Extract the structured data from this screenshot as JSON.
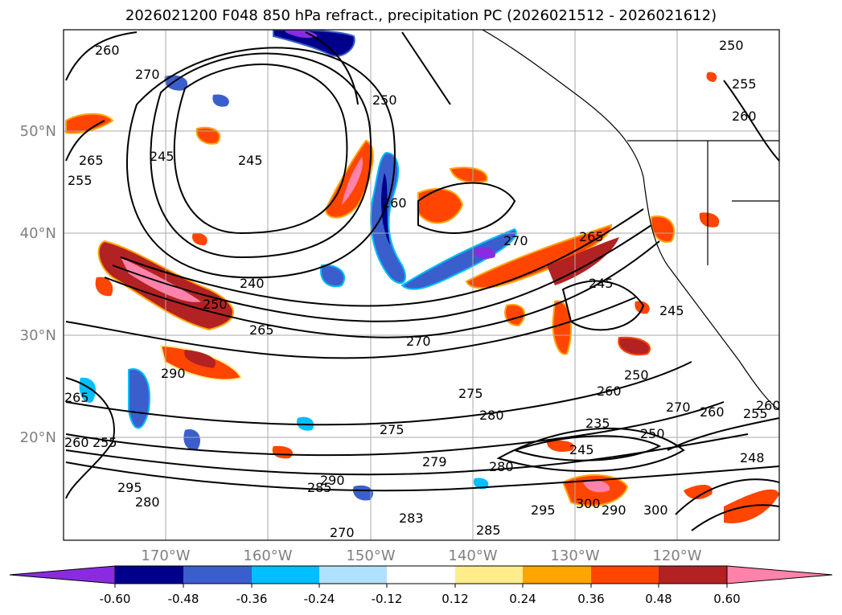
{
  "title": "2026021200 F048 850 hPa refract., precipitation PC (2026021512 - 2026021612)",
  "map": {
    "lat_labels": [
      "50°N",
      "40°N",
      "30°N",
      "20°N"
    ],
    "lon_labels": [
      "170°W",
      "160°W",
      "150°W",
      "140°W",
      "130°W",
      "120°W"
    ],
    "contour_labels": [
      "260",
      "270",
      "255",
      "265",
      "245",
      "245",
      "250",
      "260",
      "240",
      "250",
      "265",
      "270",
      "290",
      "265",
      "255",
      "260",
      "275",
      "280",
      "275",
      "279",
      "280",
      "285",
      "290",
      "295",
      "280",
      "283",
      "285",
      "295",
      "300",
      "290",
      "300",
      "270",
      "260",
      "250",
      "245",
      "265",
      "270",
      "245",
      "255",
      "260",
      "255",
      "260",
      "235",
      "248",
      "250",
      "245",
      "270",
      "260",
      "250"
    ]
  },
  "colorbar": {
    "tick_labels": [
      "-0.60",
      "-0.48",
      "-0.36",
      "-0.24",
      "-0.12",
      "0.12",
      "0.24",
      "0.36",
      "0.48",
      "0.60"
    ],
    "colors": [
      "#8a2be2",
      "#00008b",
      "#3a5fcd",
      "#00bfff",
      "#b0e2ff",
      "#ffffff",
      "#ffec8b",
      "#ffa500",
      "#ff4500",
      "#b22222",
      "#ff82ab"
    ]
  }
}
